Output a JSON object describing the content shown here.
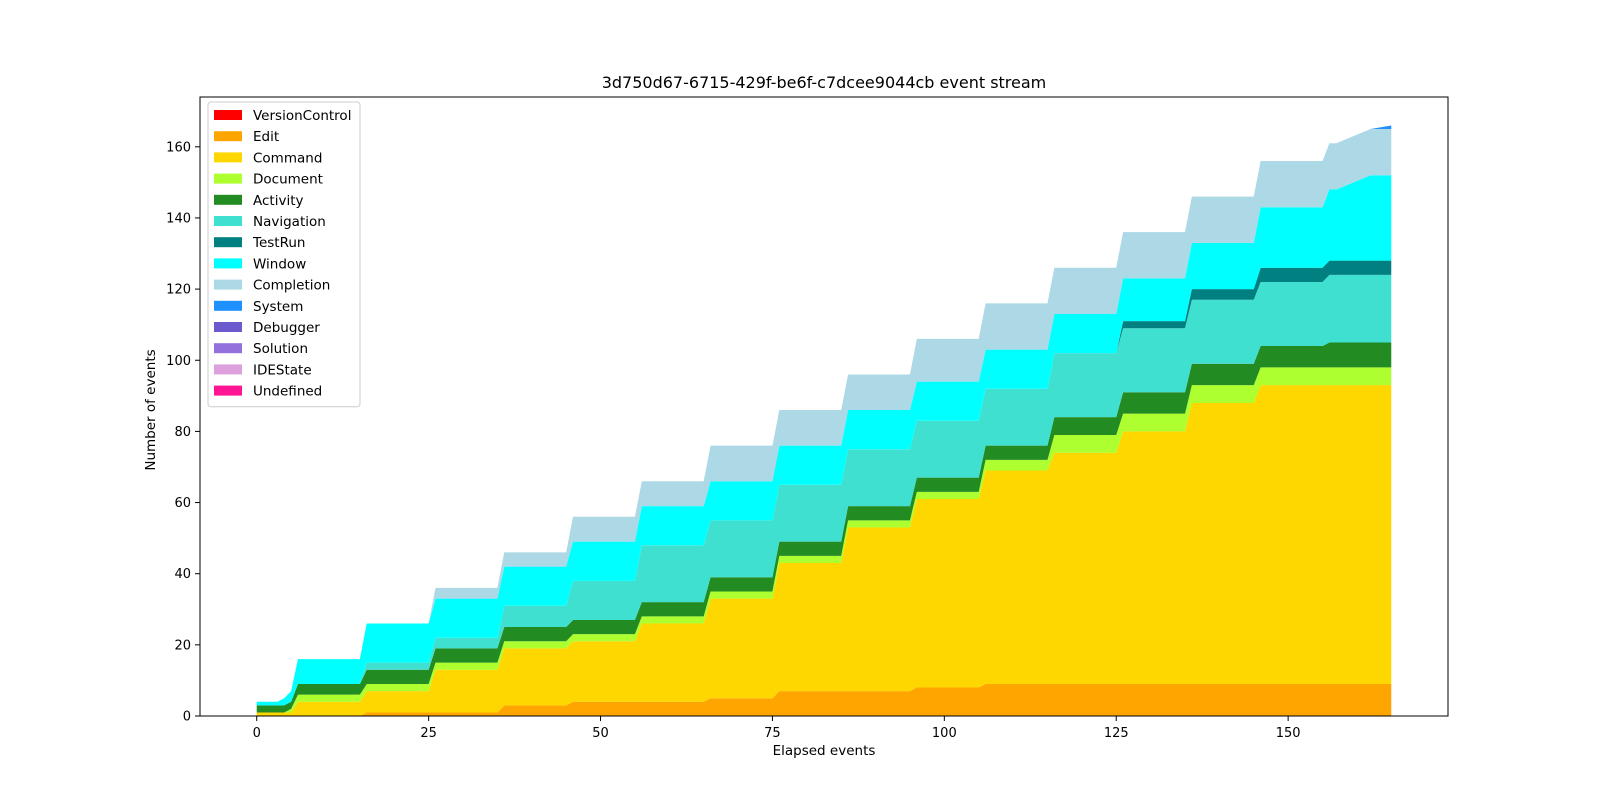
{
  "chart_data": {
    "type": "area",
    "stacked": true,
    "title": "3d750d67-6715-429f-be6f-c7dcee9044cb event stream",
    "xlabel": "Elapsed events",
    "ylabel": "Number of events",
    "xlim": [
      -8.25,
      173.25
    ],
    "ylim": [
      0,
      174
    ],
    "xticks": [
      0,
      25,
      50,
      75,
      100,
      125,
      150
    ],
    "yticks": [
      0,
      20,
      40,
      60,
      80,
      100,
      120,
      140,
      160
    ],
    "grid": false,
    "legend_position": "upper-left",
    "x": [
      0,
      3,
      4,
      5,
      6,
      15,
      16,
      25,
      26,
      35,
      36,
      45,
      46,
      55,
      56,
      65,
      66,
      75,
      76,
      85,
      86,
      95,
      96,
      105,
      106,
      115,
      116,
      125,
      126,
      135,
      136,
      145,
      146,
      155,
      156,
      157,
      162,
      165
    ],
    "series": [
      {
        "name": "VersionControl",
        "color": "#ff0000",
        "values": [
          0,
          0,
          0,
          0,
          0,
          0,
          0,
          0,
          0,
          0,
          0,
          0,
          0,
          0,
          0,
          0,
          0,
          0,
          0,
          0,
          0,
          0,
          0,
          0,
          0,
          0,
          0,
          0,
          0,
          0,
          0,
          0,
          0,
          0,
          0,
          0,
          0,
          0
        ]
      },
      {
        "name": "Edit",
        "color": "#ffa500",
        "values": [
          0,
          0,
          0,
          0,
          0,
          0,
          1,
          1,
          1,
          1,
          3,
          3,
          4,
          4,
          4,
          4,
          5,
          5,
          7,
          7,
          7,
          7,
          8,
          8,
          9,
          9,
          9,
          9,
          9,
          9,
          9,
          9,
          9,
          9,
          9,
          9,
          9,
          9
        ]
      },
      {
        "name": "Command",
        "color": "#ffd700",
        "values": [
          1,
          1,
          1,
          1,
          4,
          4,
          6,
          6,
          12,
          12,
          16,
          16,
          17,
          17,
          22,
          22,
          28,
          28,
          36,
          36,
          46,
          46,
          53,
          53,
          60,
          60,
          65,
          65,
          71,
          71,
          79,
          79,
          84,
          84,
          84,
          84,
          84,
          84
        ]
      },
      {
        "name": "Document",
        "color": "#adff2f",
        "values": [
          0,
          0,
          0,
          1,
          2,
          2,
          2,
          2,
          2,
          2,
          2,
          2,
          2,
          2,
          2,
          2,
          2,
          2,
          2,
          2,
          2,
          2,
          2,
          2,
          3,
          3,
          5,
          5,
          5,
          5,
          5,
          5,
          5,
          5,
          5,
          5,
          5,
          5
        ]
      },
      {
        "name": "Activity",
        "color": "#228b22",
        "values": [
          2,
          2,
          2,
          2,
          3,
          3,
          4,
          4,
          4,
          4,
          4,
          4,
          4,
          4,
          4,
          4,
          4,
          4,
          4,
          4,
          4,
          4,
          4,
          4,
          4,
          4,
          5,
          5,
          6,
          6,
          6,
          6,
          6,
          6,
          7,
          7,
          7,
          7
        ]
      },
      {
        "name": "Navigation",
        "color": "#40e0d0",
        "values": [
          0,
          0,
          0,
          0,
          0,
          0,
          2,
          2,
          3,
          3,
          6,
          6,
          11,
          11,
          16,
          16,
          16,
          16,
          16,
          16,
          16,
          16,
          16,
          16,
          16,
          16,
          18,
          18,
          18,
          18,
          18,
          18,
          18,
          18,
          19,
          19,
          19,
          19
        ]
      },
      {
        "name": "TestRun",
        "color": "#008080",
        "values": [
          0,
          0,
          0,
          0,
          0,
          0,
          0,
          0,
          0,
          0,
          0,
          0,
          0,
          0,
          0,
          0,
          0,
          0,
          0,
          0,
          0,
          0,
          0,
          0,
          0,
          0,
          0,
          0,
          2,
          2,
          3,
          3,
          4,
          4,
          4,
          4,
          4,
          4
        ]
      },
      {
        "name": "Window",
        "color": "#00ffff",
        "values": [
          1,
          1,
          2,
          3,
          7,
          7,
          11,
          11,
          11,
          11,
          11,
          11,
          11,
          11,
          11,
          11,
          11,
          11,
          11,
          11,
          11,
          11,
          11,
          11,
          11,
          11,
          11,
          11,
          12,
          12,
          13,
          13,
          17,
          17,
          20,
          20,
          24,
          24
        ]
      },
      {
        "name": "Completion",
        "color": "#add8e6",
        "values": [
          0,
          0,
          0,
          0,
          0,
          0,
          0,
          0,
          3,
          3,
          4,
          4,
          7,
          7,
          7,
          7,
          10,
          10,
          10,
          10,
          10,
          10,
          12,
          12,
          13,
          13,
          13,
          13,
          13,
          13,
          13,
          13,
          13,
          13,
          13,
          13,
          13,
          13
        ]
      },
      {
        "name": "System",
        "color": "#1e90ff",
        "values": [
          0,
          0,
          0,
          0,
          0,
          0,
          0,
          0,
          0,
          0,
          0,
          0,
          0,
          0,
          0,
          0,
          0,
          0,
          0,
          0,
          0,
          0,
          0,
          0,
          0,
          0,
          0,
          0,
          0,
          0,
          0,
          0,
          0,
          0,
          0,
          0,
          0,
          1
        ]
      },
      {
        "name": "Debugger",
        "color": "#6a5acd",
        "values": [
          0,
          0,
          0,
          0,
          0,
          0,
          0,
          0,
          0,
          0,
          0,
          0,
          0,
          0,
          0,
          0,
          0,
          0,
          0,
          0,
          0,
          0,
          0,
          0,
          0,
          0,
          0,
          0,
          0,
          0,
          0,
          0,
          0,
          0,
          0,
          0,
          0,
          0
        ]
      },
      {
        "name": "Solution",
        "color": "#9370db",
        "values": [
          0,
          0,
          0,
          0,
          0,
          0,
          0,
          0,
          0,
          0,
          0,
          0,
          0,
          0,
          0,
          0,
          0,
          0,
          0,
          0,
          0,
          0,
          0,
          0,
          0,
          0,
          0,
          0,
          0,
          0,
          0,
          0,
          0,
          0,
          0,
          0,
          0,
          0
        ]
      },
      {
        "name": "IDEState",
        "color": "#dda0dd",
        "values": [
          0,
          0,
          0,
          0,
          0,
          0,
          0,
          0,
          0,
          0,
          0,
          0,
          0,
          0,
          0,
          0,
          0,
          0,
          0,
          0,
          0,
          0,
          0,
          0,
          0,
          0,
          0,
          0,
          0,
          0,
          0,
          0,
          0,
          0,
          0,
          0,
          0,
          0
        ]
      },
      {
        "name": " Undefined",
        "color": "#ff1493",
        "values": [
          0,
          0,
          0,
          0,
          0,
          0,
          0,
          0,
          0,
          0,
          0,
          0,
          0,
          0,
          0,
          0,
          0,
          0,
          0,
          0,
          0,
          0,
          0,
          0,
          0,
          0,
          0,
          0,
          0,
          0,
          0,
          0,
          0,
          0,
          0,
          0,
          0,
          0
        ]
      }
    ]
  }
}
